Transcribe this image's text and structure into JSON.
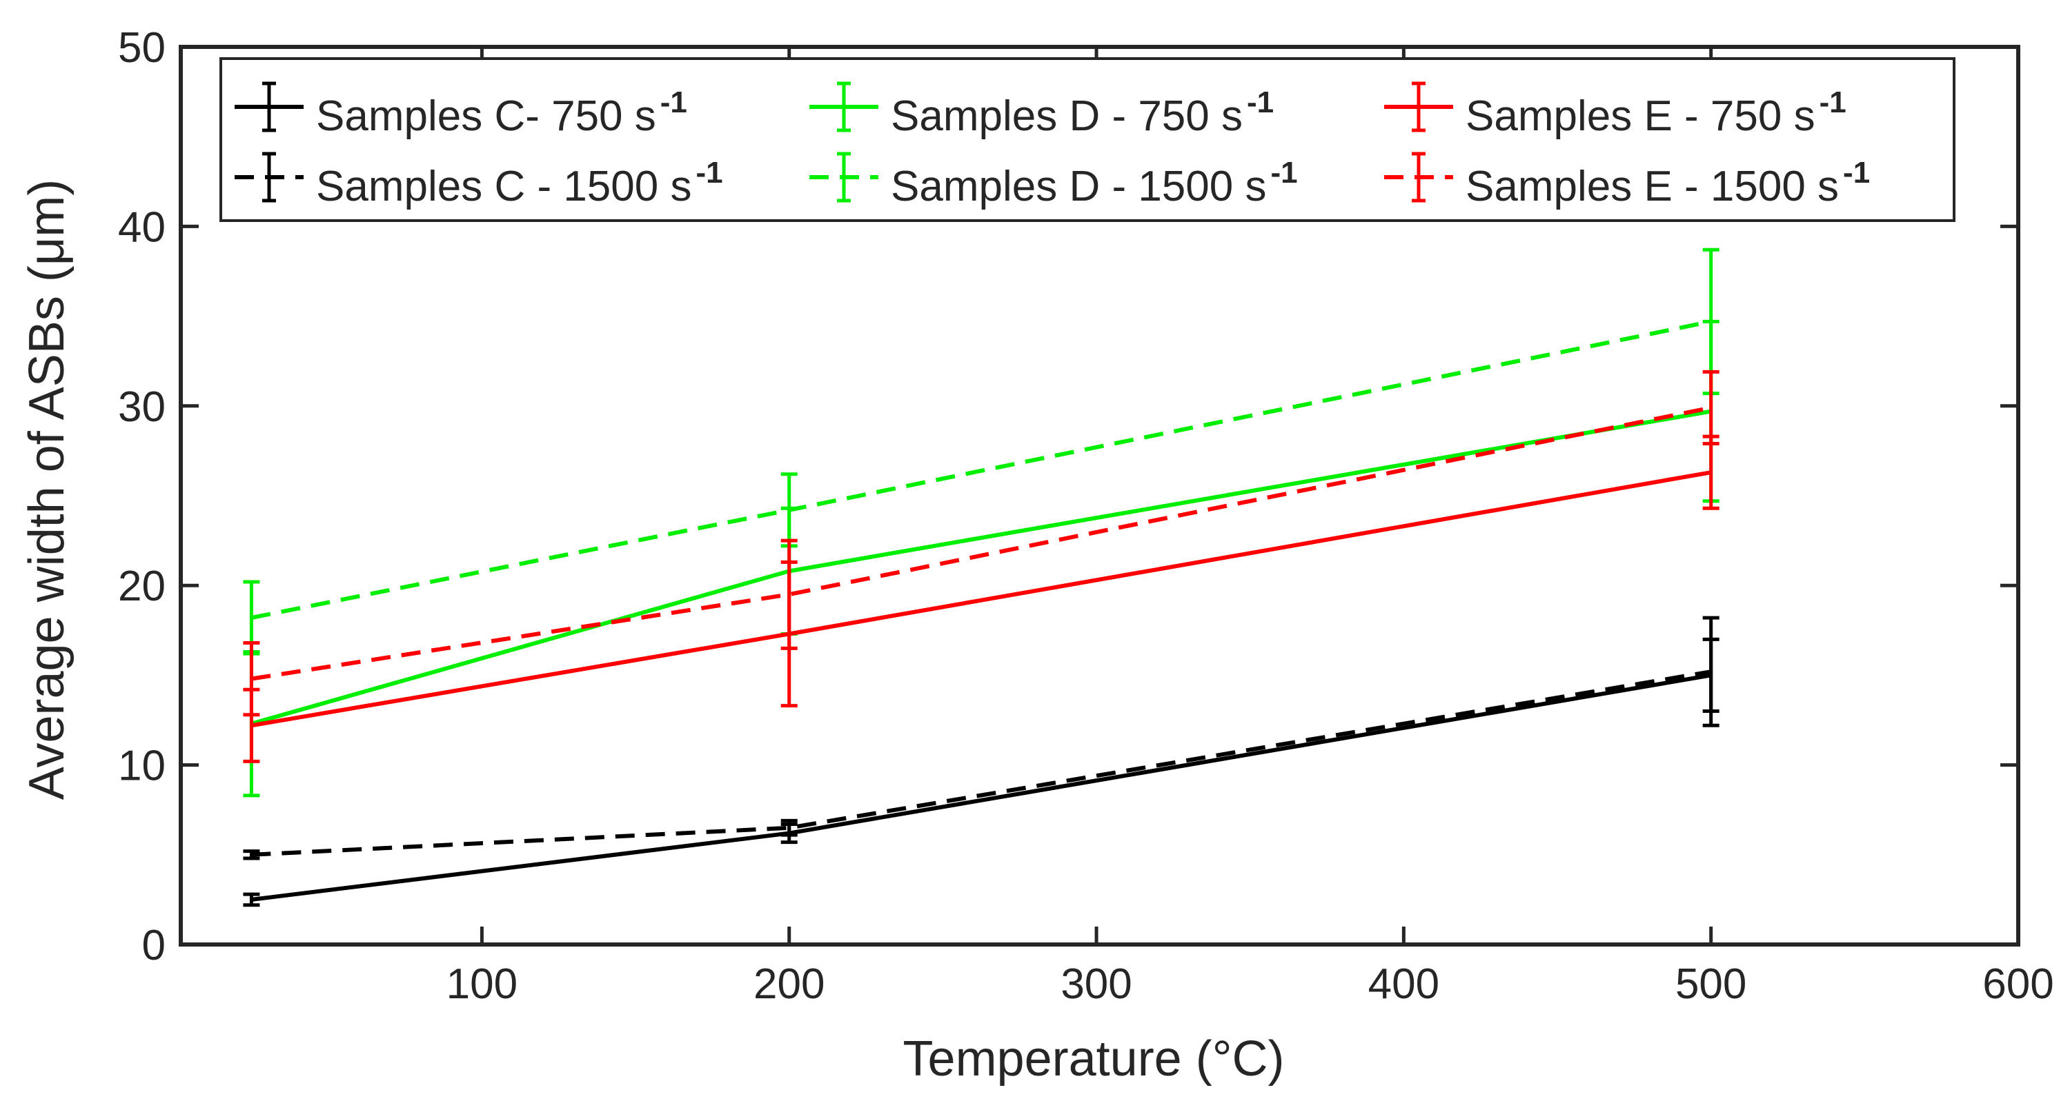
{
  "chart_data": {
    "type": "line",
    "title": "",
    "xlabel": "Temperature (°C)",
    "ylabel": "Average width of ASBs (μm)",
    "xlim": [
      2,
      600
    ],
    "ylim": [
      0,
      50
    ],
    "xticks": [
      100,
      200,
      300,
      400,
      500,
      600
    ],
    "yticks": [
      0,
      10,
      20,
      30,
      40,
      50
    ],
    "grid": false,
    "legend_position": "top",
    "series": [
      {
        "name": "Samples C- 750 s",
        "superscript": "-1",
        "color": "#000000",
        "dash": "solid",
        "x": [
          25,
          200,
          500
        ],
        "y": [
          2.5,
          6.2,
          15.0
        ],
        "err": [
          0.3,
          0.5,
          2.0
        ]
      },
      {
        "name": "Samples C - 1500 s",
        "superscript": "-1",
        "color": "#000000",
        "dash": "dashed",
        "x": [
          25,
          200,
          500
        ],
        "y": [
          5.0,
          6.5,
          15.2
        ],
        "err": [
          0.2,
          0.4,
          3.0
        ]
      },
      {
        "name": "Samples D - 750 s",
        "superscript": "-1",
        "color": "#00ee00",
        "dash": "solid",
        "x": [
          25,
          200,
          500
        ],
        "y": [
          12.3,
          20.8,
          29.7
        ],
        "err": [
          4.0,
          3.5,
          5.0
        ]
      },
      {
        "name": "Samples D - 1500 s",
        "superscript": "-1",
        "color": "#00ee00",
        "dash": "dashed",
        "x": [
          25,
          200,
          500
        ],
        "y": [
          18.2,
          24.2,
          34.7
        ],
        "err": [
          2.0,
          2.0,
          4.0
        ]
      },
      {
        "name": "Samples E - 750 s",
        "superscript": "-1",
        "color": "#ff0000",
        "dash": "solid",
        "x": [
          25,
          200,
          500
        ],
        "y": [
          12.2,
          17.3,
          26.3
        ],
        "err": [
          2.0,
          4.0,
          2.0
        ]
      },
      {
        "name": "Samples E - 1500 s",
        "superscript": "-1",
        "color": "#ff0000",
        "dash": "dashed",
        "x": [
          25,
          200,
          500
        ],
        "y": [
          14.8,
          19.5,
          29.9
        ],
        "err": [
          2.0,
          3.0,
          2.0
        ]
      }
    ]
  }
}
